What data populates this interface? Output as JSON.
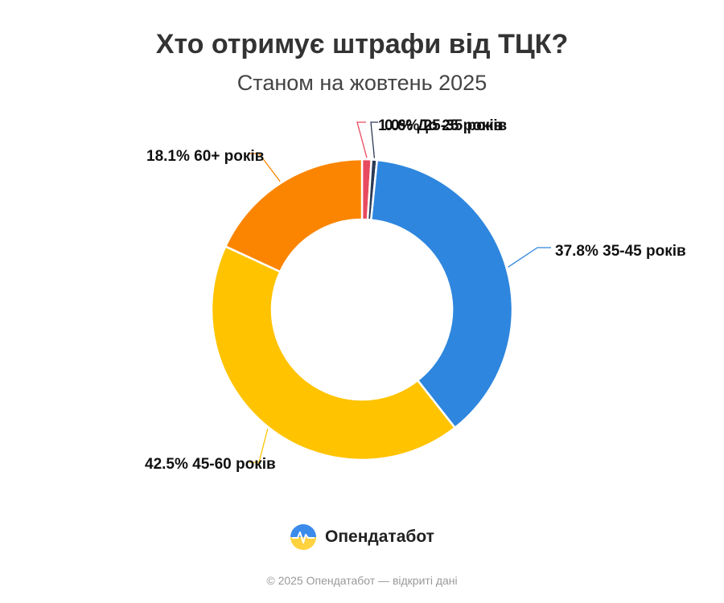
{
  "header": {
    "title": "Хто отримує штрафи від ТЦК?",
    "subtitle": "Станом на жовтень 2025"
  },
  "chart_data": {
    "type": "pie",
    "style": "donut",
    "slices": [
      {
        "label": "До 25 років",
        "value": 1.0,
        "value_label": "1.0%",
        "color": "#E84A5F"
      },
      {
        "label": "25-35 років",
        "value": 0.6,
        "value_label": "0.6%",
        "color": "#2B3A55"
      },
      {
        "label": "35-45 років",
        "value": 37.8,
        "value_label": "37.8%",
        "color": "#2E86DE"
      },
      {
        "label": "45-60 років",
        "value": 42.5,
        "value_label": "42.5%",
        "color": "#FFC300"
      },
      {
        "label": "60+ років",
        "value": 18.1,
        "value_label": "18.1%",
        "color": "#FB8500"
      }
    ],
    "legend": "none"
  },
  "brand": {
    "name": "Опендатабот",
    "logo_icon": "opendatabot-logo-icon"
  },
  "footer": {
    "text": "© 2025 Опендатабот — відкриті дані"
  }
}
